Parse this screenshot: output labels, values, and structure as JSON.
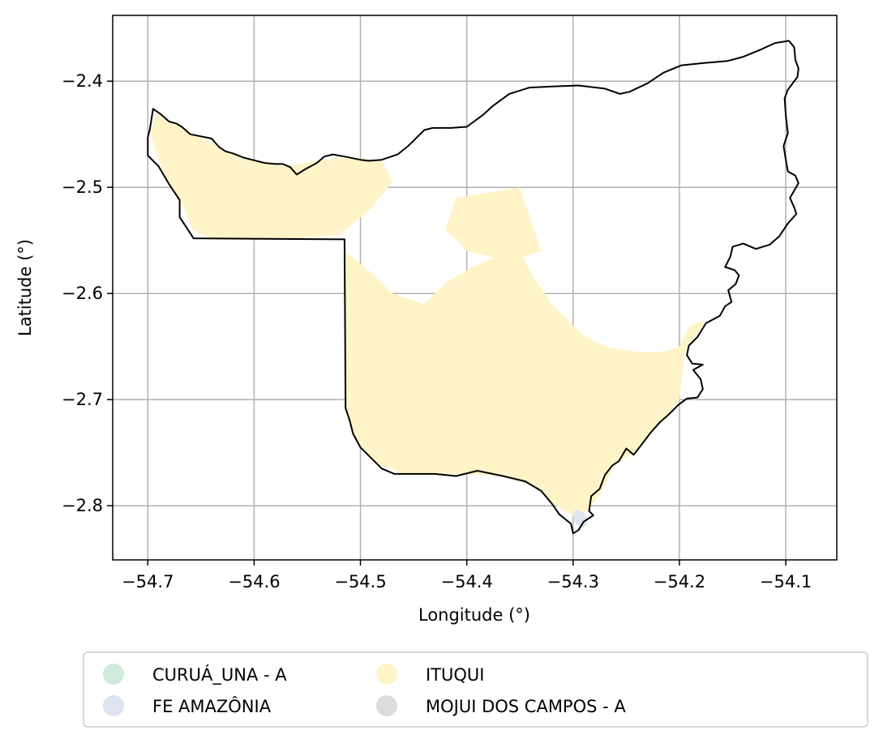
{
  "chart_data": {
    "type": "map",
    "xlabel": "Longitude (°)",
    "ylabel": "Latitude (°)",
    "xlim": [
      -54.733,
      -54.052
    ],
    "ylim": [
      -2.851,
      -2.338
    ],
    "grid": true,
    "x_ticks": [
      -54.7,
      -54.6,
      -54.5,
      -54.4,
      -54.3,
      -54.2,
      -54.1
    ],
    "y_ticks": [
      -2.4,
      -2.5,
      -2.6,
      -2.7,
      -2.8
    ],
    "x_tick_labels": [
      "−54.7",
      "−54.6",
      "−54.5",
      "−54.4",
      "−54.3",
      "−54.2",
      "−54.1"
    ],
    "y_tick_labels": [
      "−2.4",
      "−2.5",
      "−2.6",
      "−2.7",
      "−2.8"
    ],
    "boundary_color": "#000000",
    "legend": {
      "placement": "bottom",
      "columns": 3,
      "entries": [
        {
          "label": "CURUÁ_UNA - A",
          "color": "#cfeadb"
        },
        {
          "label": "FE AMAZÔNIA",
          "color": "#dde3f1"
        },
        {
          "label": "ITUQUI",
          "color": "#fff4c8"
        },
        {
          "label": "MOJUI DOS CAMPOS - A",
          "color": "#dcdcdc"
        }
      ]
    },
    "boundary": [
      [
        -54.7,
        -2.453
      ],
      [
        -54.698,
        -2.445
      ],
      [
        -54.695,
        -2.426
      ],
      [
        -54.688,
        -2.431
      ],
      [
        -54.68,
        -2.438
      ],
      [
        -54.673,
        -2.44
      ],
      [
        -54.668,
        -2.443
      ],
      [
        -54.66,
        -2.45
      ],
      [
        -54.65,
        -2.452
      ],
      [
        -54.64,
        -2.454
      ],
      [
        -54.633,
        -2.462
      ],
      [
        -54.627,
        -2.466
      ],
      [
        -54.62,
        -2.468
      ],
      [
        -54.61,
        -2.472
      ],
      [
        -54.602,
        -2.474
      ],
      [
        -54.59,
        -2.477
      ],
      [
        -54.58,
        -2.478
      ],
      [
        -54.573,
        -2.478
      ],
      [
        -54.566,
        -2.481
      ],
      [
        -54.56,
        -2.488
      ],
      [
        -54.552,
        -2.483
      ],
      [
        -54.541,
        -2.477
      ],
      [
        -54.534,
        -2.471
      ],
      [
        -54.526,
        -2.469
      ],
      [
        -54.515,
        -2.471
      ],
      [
        -54.5,
        -2.474
      ],
      [
        -54.492,
        -2.475
      ],
      [
        -54.48,
        -2.474
      ],
      [
        -54.465,
        -2.469
      ],
      [
        -54.455,
        -2.461
      ],
      [
        -54.44,
        -2.446
      ],
      [
        -54.432,
        -2.444
      ],
      [
        -54.415,
        -2.444
      ],
      [
        -54.4,
        -2.443
      ],
      [
        -54.385,
        -2.432
      ],
      [
        -54.375,
        -2.423
      ],
      [
        -54.36,
        -2.412
      ],
      [
        -54.341,
        -2.406
      ],
      [
        -54.32,
        -2.405
      ],
      [
        -54.295,
        -2.404
      ],
      [
        -54.27,
        -2.407
      ],
      [
        -54.256,
        -2.412
      ],
      [
        -54.247,
        -2.41
      ],
      [
        -54.23,
        -2.402
      ],
      [
        -54.215,
        -2.392
      ],
      [
        -54.198,
        -2.385
      ],
      [
        -54.178,
        -2.383
      ],
      [
        -54.155,
        -2.381
      ],
      [
        -54.14,
        -2.377
      ],
      [
        -54.123,
        -2.37
      ],
      [
        -54.11,
        -2.364
      ],
      [
        -54.097,
        -2.362
      ],
      [
        -54.092,
        -2.368
      ],
      [
        -54.091,
        -2.38
      ],
      [
        -54.088,
        -2.388
      ],
      [
        -54.089,
        -2.396
      ],
      [
        -54.098,
        -2.408
      ],
      [
        -54.101,
        -2.416
      ],
      [
        -54.1,
        -2.432
      ],
      [
        -54.098,
        -2.449
      ],
      [
        -54.102,
        -2.461
      ],
      [
        -54.1,
        -2.474
      ],
      [
        -54.098,
        -2.485
      ],
      [
        -54.091,
        -2.489
      ],
      [
        -54.088,
        -2.496
      ],
      [
        -54.092,
        -2.503
      ],
      [
        -54.096,
        -2.51
      ],
      [
        -54.092,
        -2.519
      ],
      [
        -54.09,
        -2.525
      ],
      [
        -54.098,
        -2.534
      ],
      [
        -54.106,
        -2.546
      ],
      [
        -54.115,
        -2.554
      ],
      [
        -54.128,
        -2.558
      ],
      [
        -54.14,
        -2.553
      ],
      [
        -54.15,
        -2.556
      ],
      [
        -54.152,
        -2.565
      ],
      [
        -54.157,
        -2.575
      ],
      [
        -54.148,
        -2.578
      ],
      [
        -54.144,
        -2.583
      ],
      [
        -54.147,
        -2.591
      ],
      [
        -54.154,
        -2.597
      ],
      [
        -54.151,
        -2.608
      ],
      [
        -54.157,
        -2.612
      ],
      [
        -54.162,
        -2.621
      ],
      [
        -54.175,
        -2.628
      ],
      [
        -54.183,
        -2.641
      ],
      [
        -54.191,
        -2.649
      ],
      [
        -54.193,
        -2.658
      ],
      [
        -54.188,
        -2.666
      ],
      [
        -54.178,
        -2.667
      ],
      [
        -54.187,
        -2.672
      ],
      [
        -54.18,
        -2.681
      ],
      [
        -54.178,
        -2.69
      ],
      [
        -54.183,
        -2.698
      ],
      [
        -54.193,
        -2.699
      ],
      [
        -54.201,
        -2.705
      ],
      [
        -54.21,
        -2.714
      ],
      [
        -54.218,
        -2.721
      ],
      [
        -54.227,
        -2.731
      ],
      [
        -54.236,
        -2.743
      ],
      [
        -54.243,
        -2.752
      ],
      [
        -54.25,
        -2.746
      ],
      [
        -54.257,
        -2.758
      ],
      [
        -54.263,
        -2.762
      ],
      [
        -54.27,
        -2.771
      ],
      [
        -54.275,
        -2.784
      ],
      [
        -54.283,
        -2.791
      ],
      [
        -54.285,
        -2.805
      ],
      [
        -54.281,
        -2.809
      ],
      [
        -54.29,
        -2.815
      ],
      [
        -54.295,
        -2.823
      ],
      [
        -54.3,
        -2.826
      ],
      [
        -54.302,
        -2.817
      ],
      [
        -54.313,
        -2.808
      ],
      [
        -54.32,
        -2.798
      ],
      [
        -54.33,
        -2.786
      ],
      [
        -54.345,
        -2.777
      ],
      [
        -54.366,
        -2.772
      ],
      [
        -54.39,
        -2.767
      ],
      [
        -54.41,
        -2.772
      ],
      [
        -54.43,
        -2.77
      ],
      [
        -54.45,
        -2.77
      ],
      [
        -54.468,
        -2.77
      ],
      [
        -54.48,
        -2.765
      ],
      [
        -54.49,
        -2.755
      ],
      [
        -54.5,
        -2.745
      ],
      [
        -54.507,
        -2.732
      ],
      [
        -54.51,
        -2.72
      ],
      [
        -54.514,
        -2.708
      ],
      [
        -54.515,
        -2.549
      ],
      [
        -54.657,
        -2.548
      ],
      [
        -54.67,
        -2.528
      ],
      [
        -54.67,
        -2.512
      ],
      [
        -54.68,
        -2.497
      ],
      [
        -54.69,
        -2.48
      ],
      [
        -54.7,
        -2.47
      ],
      [
        -54.7,
        -2.453
      ]
    ],
    "regions": [
      {
        "name": "ITUQUI",
        "polygons": [
          [
            [
              -54.693,
              -2.43
            ],
            [
              -54.665,
              -2.445
            ],
            [
              -54.625,
              -2.466
            ],
            [
              -54.6,
              -2.474
            ],
            [
              -54.572,
              -2.48
            ],
            [
              -54.52,
              -2.472
            ],
            [
              -54.48,
              -2.474
            ],
            [
              -54.47,
              -2.495
            ],
            [
              -54.49,
              -2.52
            ],
            [
              -54.52,
              -2.545
            ],
            [
              -54.56,
              -2.548
            ],
            [
              -54.64,
              -2.548
            ],
            [
              -54.658,
              -2.54
            ],
            [
              -54.668,
              -2.515
            ],
            [
              -54.68,
              -2.497
            ],
            [
              -54.69,
              -2.475
            ],
            [
              -54.697,
              -2.45
            ]
          ],
          [
            [
              -54.515,
              -2.56
            ],
            [
              -54.49,
              -2.58
            ],
            [
              -54.47,
              -2.6
            ],
            [
              -54.44,
              -2.61
            ],
            [
              -54.42,
              -2.59
            ],
            [
              -54.395,
              -2.575
            ],
            [
              -54.37,
              -2.565
            ],
            [
              -54.35,
              -2.56
            ],
            [
              -54.34,
              -2.58
            ],
            [
              -54.32,
              -2.61
            ],
            [
              -54.29,
              -2.64
            ],
            [
              -54.27,
              -2.65
            ],
            [
              -54.24,
              -2.655
            ],
            [
              -54.215,
              -2.655
            ],
            [
              -54.2,
              -2.65
            ],
            [
              -54.19,
              -2.63
            ],
            [
              -54.175,
              -2.625
            ],
            [
              -54.195,
              -2.655
            ],
            [
              -54.2,
              -2.7
            ],
            [
              -54.215,
              -2.72
            ],
            [
              -54.23,
              -2.735
            ],
            [
              -54.245,
              -2.752
            ],
            [
              -54.26,
              -2.76
            ],
            [
              -54.275,
              -2.79
            ],
            [
              -54.287,
              -2.805
            ],
            [
              -54.3,
              -2.81
            ],
            [
              -54.32,
              -2.797
            ],
            [
              -54.34,
              -2.78
            ],
            [
              -54.37,
              -2.772
            ],
            [
              -54.41,
              -2.77
            ],
            [
              -54.46,
              -2.77
            ],
            [
              -54.485,
              -2.76
            ],
            [
              -54.5,
              -2.745
            ],
            [
              -54.51,
              -2.725
            ],
            [
              -54.514,
              -2.7
            ],
            [
              -54.514,
              -2.62
            ]
          ],
          [
            [
              -54.41,
              -2.51
            ],
            [
              -54.35,
              -2.5
            ],
            [
              -54.34,
              -2.53
            ],
            [
              -54.33,
              -2.56
            ],
            [
              -54.36,
              -2.57
            ],
            [
              -54.4,
              -2.56
            ],
            [
              -54.42,
              -2.54
            ]
          ]
        ]
      },
      {
        "name": "FE AMAZÔNIA",
        "polygons": [
          [
            [
              -54.298,
              -2.804
            ],
            [
              -54.29,
              -2.806
            ],
            [
              -54.286,
              -2.814
            ],
            [
              -54.29,
              -2.821
            ],
            [
              -54.297,
              -2.818
            ],
            [
              -54.3,
              -2.81
            ]
          ]
        ]
      }
    ]
  }
}
